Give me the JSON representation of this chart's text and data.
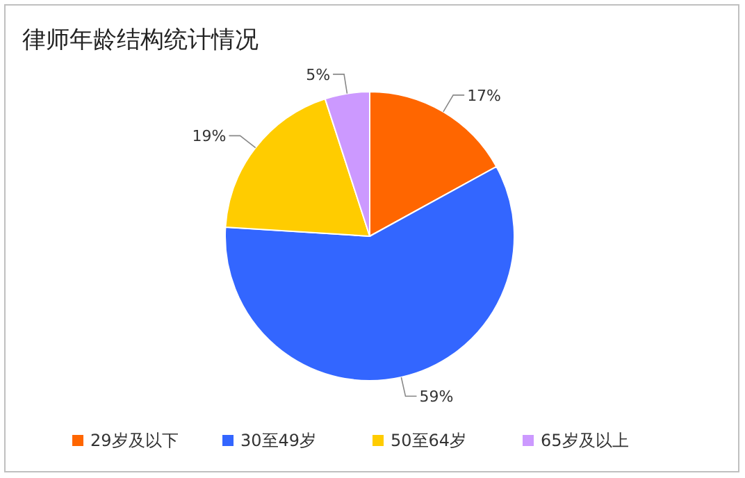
{
  "chart_data": {
    "type": "pie",
    "title": "律师年龄结构统计情况",
    "categories": [
      "29岁及以下",
      "30至49岁",
      "50至64岁",
      "65岁及以上"
    ],
    "values": [
      17,
      59,
      19,
      5
    ],
    "colors": [
      "#ff6600",
      "#3366ff",
      "#ffcc00",
      "#cc99ff"
    ],
    "value_labels": [
      "17%",
      "59%",
      "19%",
      "5%"
    ],
    "legend": "bottom"
  }
}
